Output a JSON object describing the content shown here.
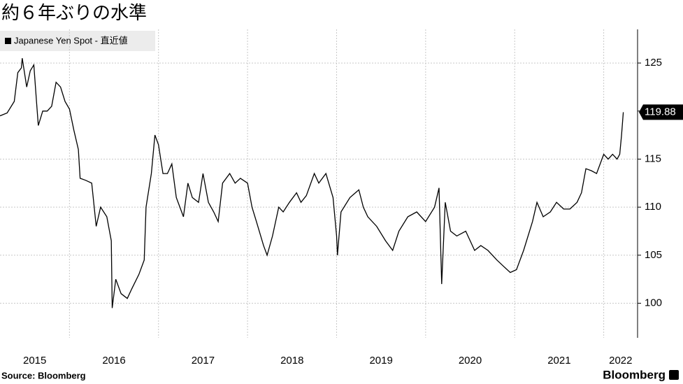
{
  "chart_data": {
    "type": "line",
    "title": "約６年ぶりの水準",
    "source": "Source: Bloomberg",
    "logo": "Bloomberg",
    "x": [
      2015.22,
      2015.3,
      2015.38,
      2015.42,
      2015.46,
      2015.47,
      2015.52,
      2015.56,
      2015.6,
      2015.63,
      2015.65,
      2015.7,
      2015.75,
      2015.8,
      2015.85,
      2015.9,
      2015.95,
      2016.0,
      2016.05,
      2016.1,
      2016.12,
      2016.18,
      2016.25,
      2016.3,
      2016.35,
      2016.42,
      2016.47,
      2016.48,
      2016.52,
      2016.58,
      2016.65,
      2016.7,
      2016.78,
      2016.84,
      2016.86,
      2016.92,
      2016.96,
      2017.0,
      2017.05,
      2017.1,
      2017.15,
      2017.2,
      2017.28,
      2017.33,
      2017.38,
      2017.45,
      2017.5,
      2017.56,
      2017.62,
      2017.67,
      2017.72,
      2017.8,
      2017.86,
      2017.92,
      2018.0,
      2018.05,
      2018.1,
      2018.18,
      2018.22,
      2018.28,
      2018.35,
      2018.4,
      2018.47,
      2018.55,
      2018.6,
      2018.66,
      2018.75,
      2018.8,
      2018.88,
      2018.96,
      2019.0,
      2019.01,
      2019.05,
      2019.15,
      2019.25,
      2019.3,
      2019.35,
      2019.45,
      2019.55,
      2019.63,
      2019.7,
      2019.8,
      2019.9,
      2020.0,
      2020.1,
      2020.15,
      2020.18,
      2020.22,
      2020.28,
      2020.35,
      2020.45,
      2020.55,
      2020.62,
      2020.7,
      2020.8,
      2020.88,
      2020.95,
      2021.02,
      2021.1,
      2021.2,
      2021.25,
      2021.32,
      2021.4,
      2021.47,
      2021.55,
      2021.62,
      2021.7,
      2021.75,
      2021.8,
      2021.86,
      2021.92,
      2022.0,
      2022.05,
      2022.1,
      2022.15,
      2022.18,
      2022.2,
      2022.22
    ],
    "series": [
      {
        "name": "Japanese Yen Spot - 直近値",
        "color": "#000000",
        "values": [
          119.5,
          119.8,
          121,
          124,
          124.5,
          125.5,
          122.5,
          124.2,
          124.8,
          121,
          118.5,
          120,
          120,
          120.5,
          123,
          122.5,
          121,
          120.2,
          118,
          116,
          113,
          112.8,
          112.5,
          108,
          110,
          109,
          106.5,
          99.5,
          102.5,
          101,
          100.5,
          101.5,
          103,
          104.5,
          110,
          113.5,
          117.5,
          116.5,
          113.5,
          113.5,
          114.5,
          111,
          109,
          112.5,
          111,
          110.5,
          113.5,
          110.5,
          109.5,
          108.5,
          112.5,
          113.5,
          112.5,
          113,
          112.5,
          110,
          108.5,
          106,
          105,
          107,
          110,
          109.5,
          110.5,
          111.5,
          110.5,
          111.2,
          113.5,
          112.5,
          113.5,
          111,
          107,
          105,
          109.5,
          111,
          111.8,
          110,
          109,
          108,
          106.5,
          105.5,
          107.5,
          109,
          109.5,
          108.5,
          110,
          112,
          102,
          110.5,
          107.5,
          107,
          107.5,
          105.5,
          106,
          105.5,
          104.5,
          103.8,
          103.2,
          103.5,
          105.5,
          108.5,
          110.5,
          109,
          109.5,
          110.5,
          109.8,
          109.8,
          110.5,
          111.5,
          114,
          113.8,
          113.5,
          115.5,
          115,
          115.5,
          115,
          115.5,
          117.5,
          119.88
        ]
      }
    ],
    "xlim": [
      2015.22,
      2022.38
    ],
    "ylim": [
      96.4,
      128.5
    ],
    "yticks": [
      100,
      105,
      110,
      115,
      120,
      125
    ],
    "ygrid_ticks": [
      100,
      105,
      110,
      115,
      125
    ],
    "xticks": [
      {
        "value": 2015.61,
        "label": "2015"
      },
      {
        "value": 2016.5,
        "label": "2016"
      },
      {
        "value": 2017.5,
        "label": "2017"
      },
      {
        "value": 2018.5,
        "label": "2018"
      },
      {
        "value": 2019.5,
        "label": "2019"
      },
      {
        "value": 2020.5,
        "label": "2020"
      },
      {
        "value": 2021.5,
        "label": "2021"
      },
      {
        "value": 2022.19,
        "label": "2022"
      }
    ],
    "xgridlines": [
      2016,
      2017,
      2018,
      2019,
      2020,
      2021,
      2022
    ],
    "grid": true
  }
}
